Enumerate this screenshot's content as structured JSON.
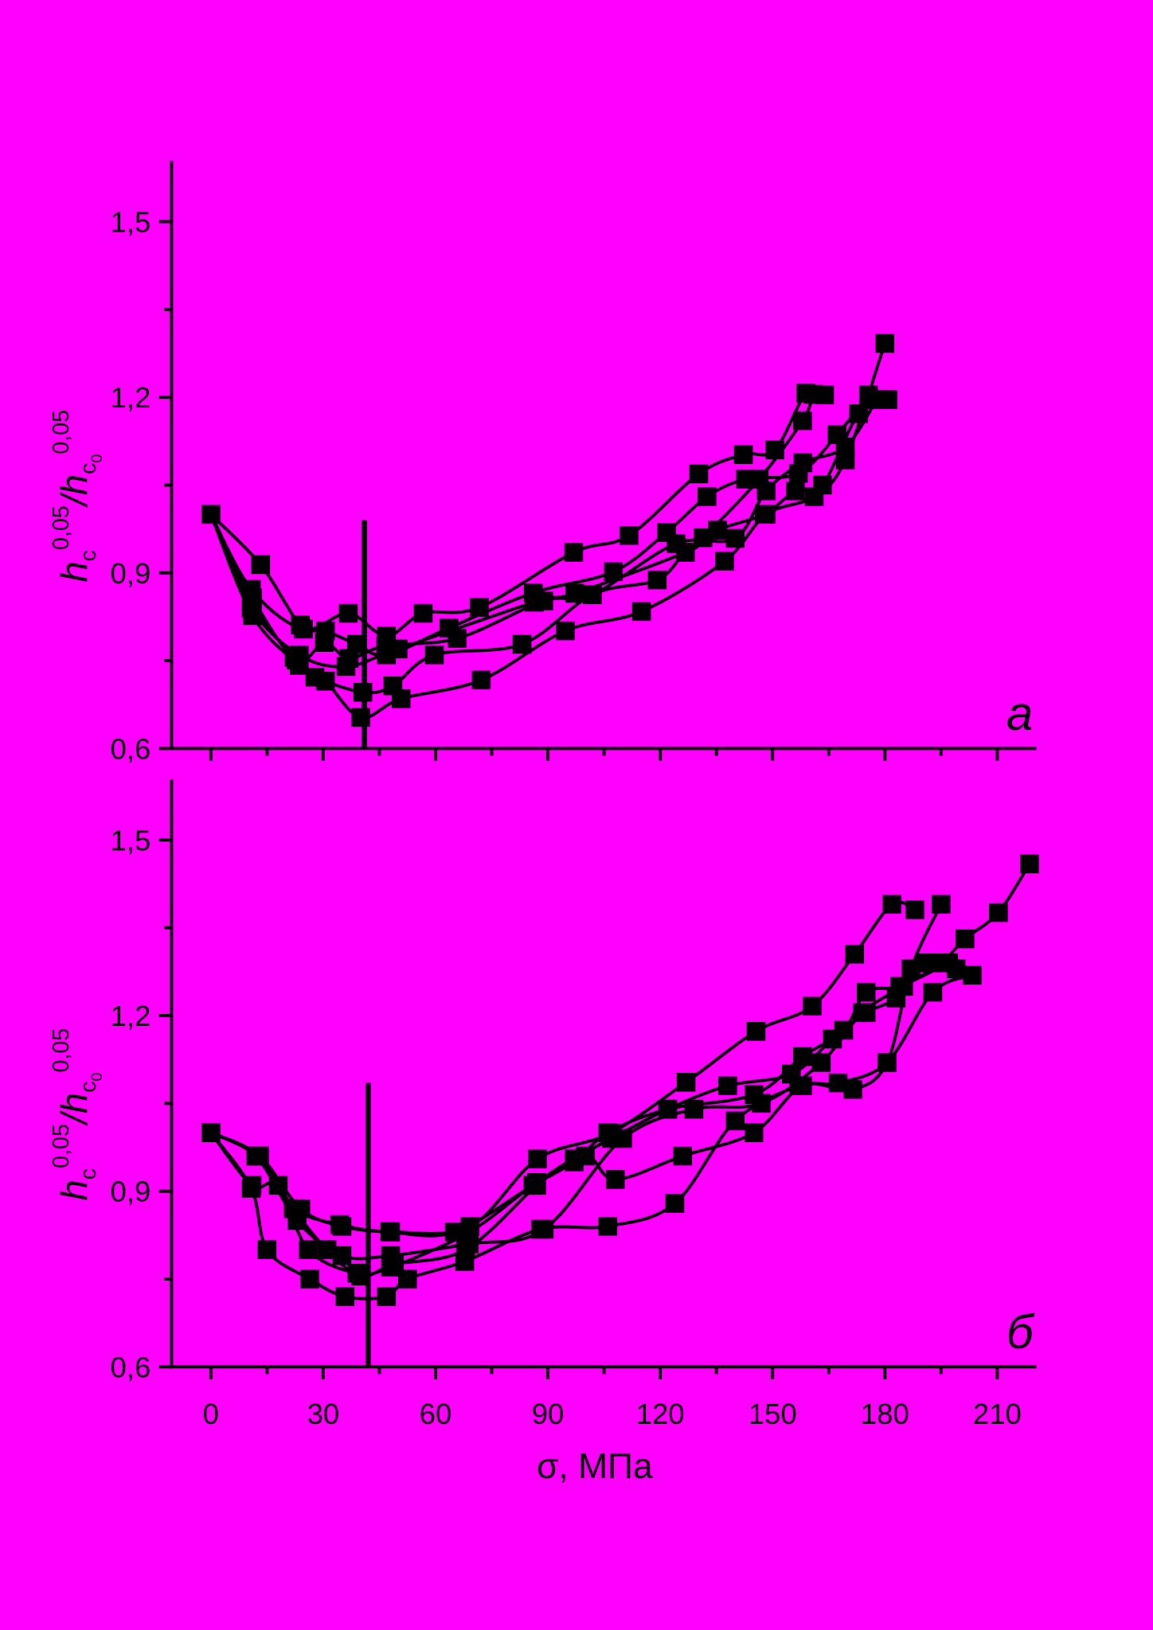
{
  "colors": {
    "background": "#ff00ff",
    "ink": "#000000"
  },
  "chart_data": [
    {
      "panel_label": "а",
      "type": "line",
      "title": "",
      "xlabel": "",
      "ylabel_parts": {
        "h1": "h",
        "sub1": "c",
        "sup1": "0,05",
        "h2": "/h",
        "sub2": "c",
        "subsub2": "0",
        "sup2": "0,05"
      },
      "xlim": [
        -10.5,
        220.5
      ],
      "ylim": [
        0.6,
        1.6
      ],
      "grid": false,
      "marker": "square",
      "x_ticks": {
        "values": [
          0,
          30,
          60,
          90,
          120,
          150,
          180,
          210
        ],
        "minor": [
          15,
          45,
          75,
          105,
          135,
          165,
          195
        ]
      },
      "y_ticks": {
        "values": [
          1.5,
          1.2,
          0.9,
          0.6
        ],
        "labels": [
          "1,5",
          "1,2",
          "0,9",
          "0,6"
        ],
        "minor": [
          1.35,
          1.05,
          0.75
        ]
      },
      "reference_line": {
        "x": 41,
        "y": [
          0.6,
          0.99
        ]
      },
      "series": [
        {
          "points": [
            [
              0,
              1.0
            ],
            [
              10.8,
              0.85
            ],
            [
              22.2,
              0.756
            ],
            [
              30.6,
              0.715
            ],
            [
              40,
              0.653
            ],
            [
              50.8,
              0.685
            ],
            [
              72.2,
              0.717
            ],
            [
              94.7,
              0.801
            ],
            [
              115,
              0.834
            ],
            [
              137.2,
              0.92
            ],
            [
              148.3,
              1.0
            ],
            [
              161.1,
              1.03
            ],
            [
              169.4,
              1.093
            ],
            [
              180,
              1.292
            ]
          ]
        },
        {
          "points": [
            [
              0,
              1.0
            ],
            [
              11.1,
              0.827
            ],
            [
              23.6,
              0.742
            ],
            [
              27.8,
              0.722
            ],
            [
              40.6,
              0.696
            ],
            [
              48.6,
              0.707
            ],
            [
              59.7,
              0.76
            ],
            [
              83.1,
              0.778
            ],
            [
              101.9,
              0.863
            ],
            [
              119.2,
              0.888
            ],
            [
              126.7,
              0.935
            ],
            [
              135.3,
              0.973
            ],
            [
              147.8,
              1.0
            ],
            [
              156.1,
              1.04
            ],
            [
              163.3,
              1.05
            ],
            [
              173,
              1.172
            ],
            [
              180.8,
              1.196
            ]
          ]
        },
        {
          "points": [
            [
              0,
              1.0
            ],
            [
              13.3,
              0.914
            ],
            [
              23.9,
              0.811
            ],
            [
              30.6,
              0.801
            ],
            [
              38.9,
              0.778
            ],
            [
              46.9,
              0.76
            ],
            [
              63.6,
              0.806
            ],
            [
              86.1,
              0.866
            ],
            [
              107.5,
              0.902
            ],
            [
              121.7,
              0.969
            ],
            [
              132.5,
              1.03
            ],
            [
              142.8,
              1.06
            ],
            [
              156.9,
              1.07
            ],
            [
              167.2,
              1.136
            ],
            [
              175.6,
              1.204
            ]
          ]
        },
        {
          "points": [
            [
              0,
              1.0
            ],
            [
              10.8,
              0.872
            ],
            [
              24.7,
              0.804
            ],
            [
              36.7,
              0.831
            ],
            [
              46.9,
              0.792
            ],
            [
              56.7,
              0.831
            ],
            [
              71.7,
              0.841
            ],
            [
              96.9,
              0.935
            ],
            [
              111.7,
              0.964
            ],
            [
              130.3,
              1.069
            ],
            [
              142.2,
              1.102
            ],
            [
              150.6,
              1.11
            ],
            [
              158.9,
              1.207
            ],
            [
              163.9,
              1.204
            ]
          ]
        },
        {
          "points": [
            [
              0,
              1.0
            ],
            [
              11.1,
              0.857
            ],
            [
              22.8,
              0.751
            ],
            [
              30.3,
              0.781
            ],
            [
              36.9,
              0.754
            ],
            [
              46.7,
              0.776
            ],
            [
              65.8,
              0.788
            ],
            [
              88.9,
              0.852
            ],
            [
              101.9,
              0.863
            ],
            [
              124.2,
              0.95
            ],
            [
              140,
              0.959
            ],
            [
              148.3,
              1.04
            ],
            [
              158.1,
              1.088
            ],
            [
              169.4,
              1.115
            ],
            [
              177.8,
              1.196
            ]
          ]
        },
        {
          "points": [
            [
              0,
              1.0
            ],
            [
              10.8,
              0.84
            ],
            [
              23.6,
              0.76
            ],
            [
              36.1,
              0.74
            ],
            [
              50,
              0.77
            ],
            [
              86.4,
              0.85
            ],
            [
              97.2,
              0.865
            ],
            [
              126.7,
              0.935
            ],
            [
              131.4,
              0.96
            ],
            [
              146.4,
              1.06
            ],
            [
              158,
              1.16
            ],
            [
              160.8,
              1.205
            ]
          ]
        }
      ]
    },
    {
      "panel_label": "б",
      "type": "line",
      "title": "",
      "xlabel": "σ, МПа",
      "ylabel_parts": {
        "h1": "h",
        "sub1": "c",
        "sup1": "0,05",
        "h2": "/h",
        "sub2": "c",
        "subsub2": "0",
        "sup2": "0,05"
      },
      "xlim": [
        -10.5,
        220.5
      ],
      "ylim": [
        0.6,
        1.6
      ],
      "grid": false,
      "marker": "square",
      "x_ticks": {
        "values": [
          0,
          30,
          60,
          90,
          120,
          150,
          180,
          210
        ],
        "labels": [
          "0",
          "30",
          "60",
          "90",
          "120",
          "150",
          "180",
          "210"
        ],
        "minor": [
          15,
          45,
          75,
          105,
          135,
          165,
          195
        ]
      },
      "y_ticks": {
        "values": [
          1.5,
          1.2,
          0.9,
          0.6
        ],
        "labels": [
          "1,5",
          "1,2",
          "0,9",
          "0,6"
        ],
        "minor": [
          1.35,
          1.05,
          0.75
        ]
      },
      "reference_line": {
        "x": 42,
        "y": [
          0.6,
          1.085
        ]
      },
      "series": [
        {
          "points": [
            [
              0,
              1.0
            ],
            [
              12.2,
              0.96
            ],
            [
              22.8,
              0.87
            ],
            [
              34.4,
              0.843
            ],
            [
              47.8,
              0.831
            ],
            [
              69.2,
              0.84
            ],
            [
              87.2,
              0.955
            ],
            [
              106.7,
              0.999
            ],
            [
              126.9,
              1.086
            ],
            [
              145.6,
              1.173
            ],
            [
              160.6,
              1.216
            ],
            [
              171.9,
              1.305
            ],
            [
              181.9,
              1.39
            ],
            [
              188,
              1.381
            ]
          ]
        },
        {
          "points": [
            [
              0,
              1.0
            ],
            [
              12,
              0.96
            ],
            [
              23,
              0.85
            ],
            [
              35,
              0.79
            ],
            [
              48,
              0.79
            ],
            [
              69,
              0.81
            ],
            [
              89,
              0.835
            ],
            [
              110,
              0.99
            ],
            [
              129,
              1.04
            ],
            [
              147,
              1.05
            ],
            [
              163,
              1.12
            ],
            [
              174,
              1.205
            ],
            [
              185,
              1.25
            ],
            [
              195,
              1.29
            ],
            [
              201.4,
              1.331
            ],
            [
              210.3,
              1.376
            ],
            [
              218.6,
              1.459
            ]
          ]
        },
        {
          "points": [
            [
              0,
              1.0
            ],
            [
              10.8,
              0.905
            ],
            [
              15,
              0.8
            ],
            [
              26.4,
              0.75
            ],
            [
              35.8,
              0.72
            ],
            [
              46.9,
              0.72
            ],
            [
              52.5,
              0.75
            ],
            [
              67.8,
              0.78
            ],
            [
              88,
              0.835
            ],
            [
              106,
              0.84
            ],
            [
              123.9,
              0.879
            ],
            [
              140,
              1.02
            ],
            [
              157,
              1.08
            ],
            [
              167.5,
              1.085
            ],
            [
              180.6,
              1.12
            ],
            [
              192.8,
              1.24
            ],
            [
              203.3,
              1.269
            ]
          ]
        },
        {
          "points": [
            [
              0,
              1.0
            ],
            [
              13,
              0.96
            ],
            [
              22,
              0.87
            ],
            [
              31,
              0.8
            ],
            [
              40,
              0.755
            ],
            [
              49,
              0.775
            ],
            [
              68,
              0.8
            ],
            [
              87,
              0.91
            ],
            [
              97,
              0.955
            ],
            [
              107,
              0.99
            ],
            [
              122,
              1.04
            ],
            [
              138,
              1.08
            ],
            [
              155,
              1.1
            ],
            [
              166,
              1.16
            ],
            [
              175,
              1.205
            ],
            [
              183,
              1.23
            ],
            [
              191,
              1.29
            ],
            [
              199,
              1.28
            ]
          ]
        },
        {
          "points": [
            [
              0,
              1.0
            ],
            [
              11,
              0.91
            ],
            [
              18,
              0.91
            ],
            [
              26,
              0.8
            ],
            [
              39,
              0.76
            ],
            [
              48,
              0.77
            ],
            [
              69,
              0.83
            ],
            [
              87,
              0.915
            ],
            [
              100,
              0.96
            ],
            [
              108,
              0.92
            ],
            [
              126,
              0.96
            ],
            [
              145,
              1.0
            ],
            [
              158,
              1.08
            ],
            [
              171.4,
              1.074
            ],
            [
              180.6,
              1.12
            ],
            [
              187,
              1.28
            ],
            [
              195,
              1.39
            ]
          ]
        },
        {
          "points": [
            [
              0,
              1.0
            ],
            [
              13,
              0.96
            ],
            [
              24,
              0.87
            ],
            [
              35,
              0.84
            ],
            [
              48,
              0.83
            ],
            [
              65,
              0.83
            ],
            [
              86,
              0.91
            ],
            [
              97,
              0.95
            ],
            [
              106,
              1.0
            ],
            [
              122,
              1.04
            ],
            [
              145,
              1.065
            ],
            [
              158,
              1.13
            ],
            [
              169,
              1.175
            ],
            [
              175,
              1.24
            ],
            [
              184,
              1.25
            ],
            [
              197,
              1.29
            ]
          ]
        }
      ]
    }
  ]
}
